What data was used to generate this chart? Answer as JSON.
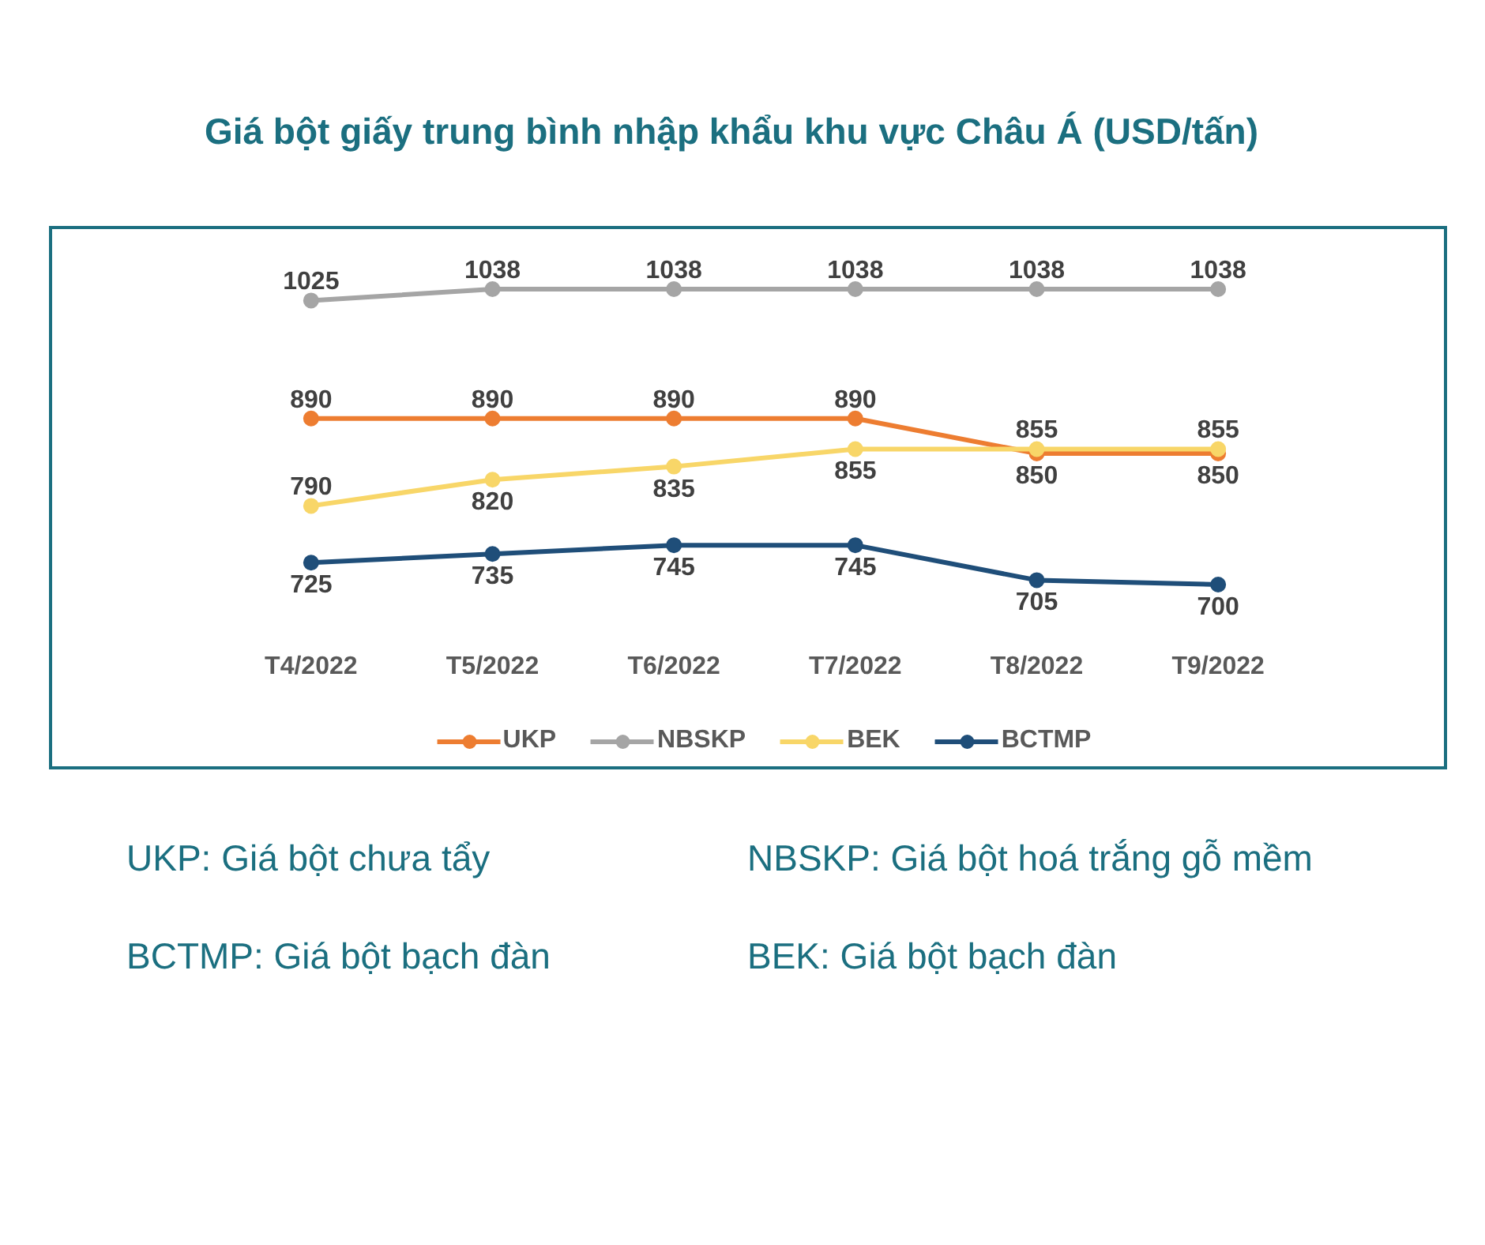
{
  "chart_data": {
    "type": "line",
    "title": "Giá bột giấy trung bình nhập khẩu khu vực Châu Á (USD/tấn)",
    "categories": [
      "T4/2022",
      "T5/2022",
      "T6/2022",
      "T7/2022",
      "T8/2022",
      "T9/2022"
    ],
    "series": [
      {
        "name": "UKP",
        "color": "#ed7d31",
        "values": [
          890,
          890,
          890,
          890,
          850,
          850
        ]
      },
      {
        "name": "NBSKP",
        "color": "#a5a5a5",
        "values": [
          1025,
          1038,
          1038,
          1038,
          1038,
          1038
        ]
      },
      {
        "name": "BEK",
        "color": "#f8d668",
        "values": [
          790,
          820,
          835,
          855,
          855,
          855
        ]
      },
      {
        "name": "BCTMP",
        "color": "#1f4e79",
        "values": [
          725,
          735,
          745,
          745,
          705,
          700
        ]
      }
    ],
    "data_labels": true,
    "marker": "circle",
    "legend": "bottom",
    "tick_labels": "x",
    "annotations": [
      "UKP: Giá bột chưa tẩy",
      "NBSKP: Giá bột hoá trắng gỗ mềm",
      "BCTMP: Giá bột bạch đàn",
      "BEK: Giá bột bạch đàn"
    ]
  }
}
